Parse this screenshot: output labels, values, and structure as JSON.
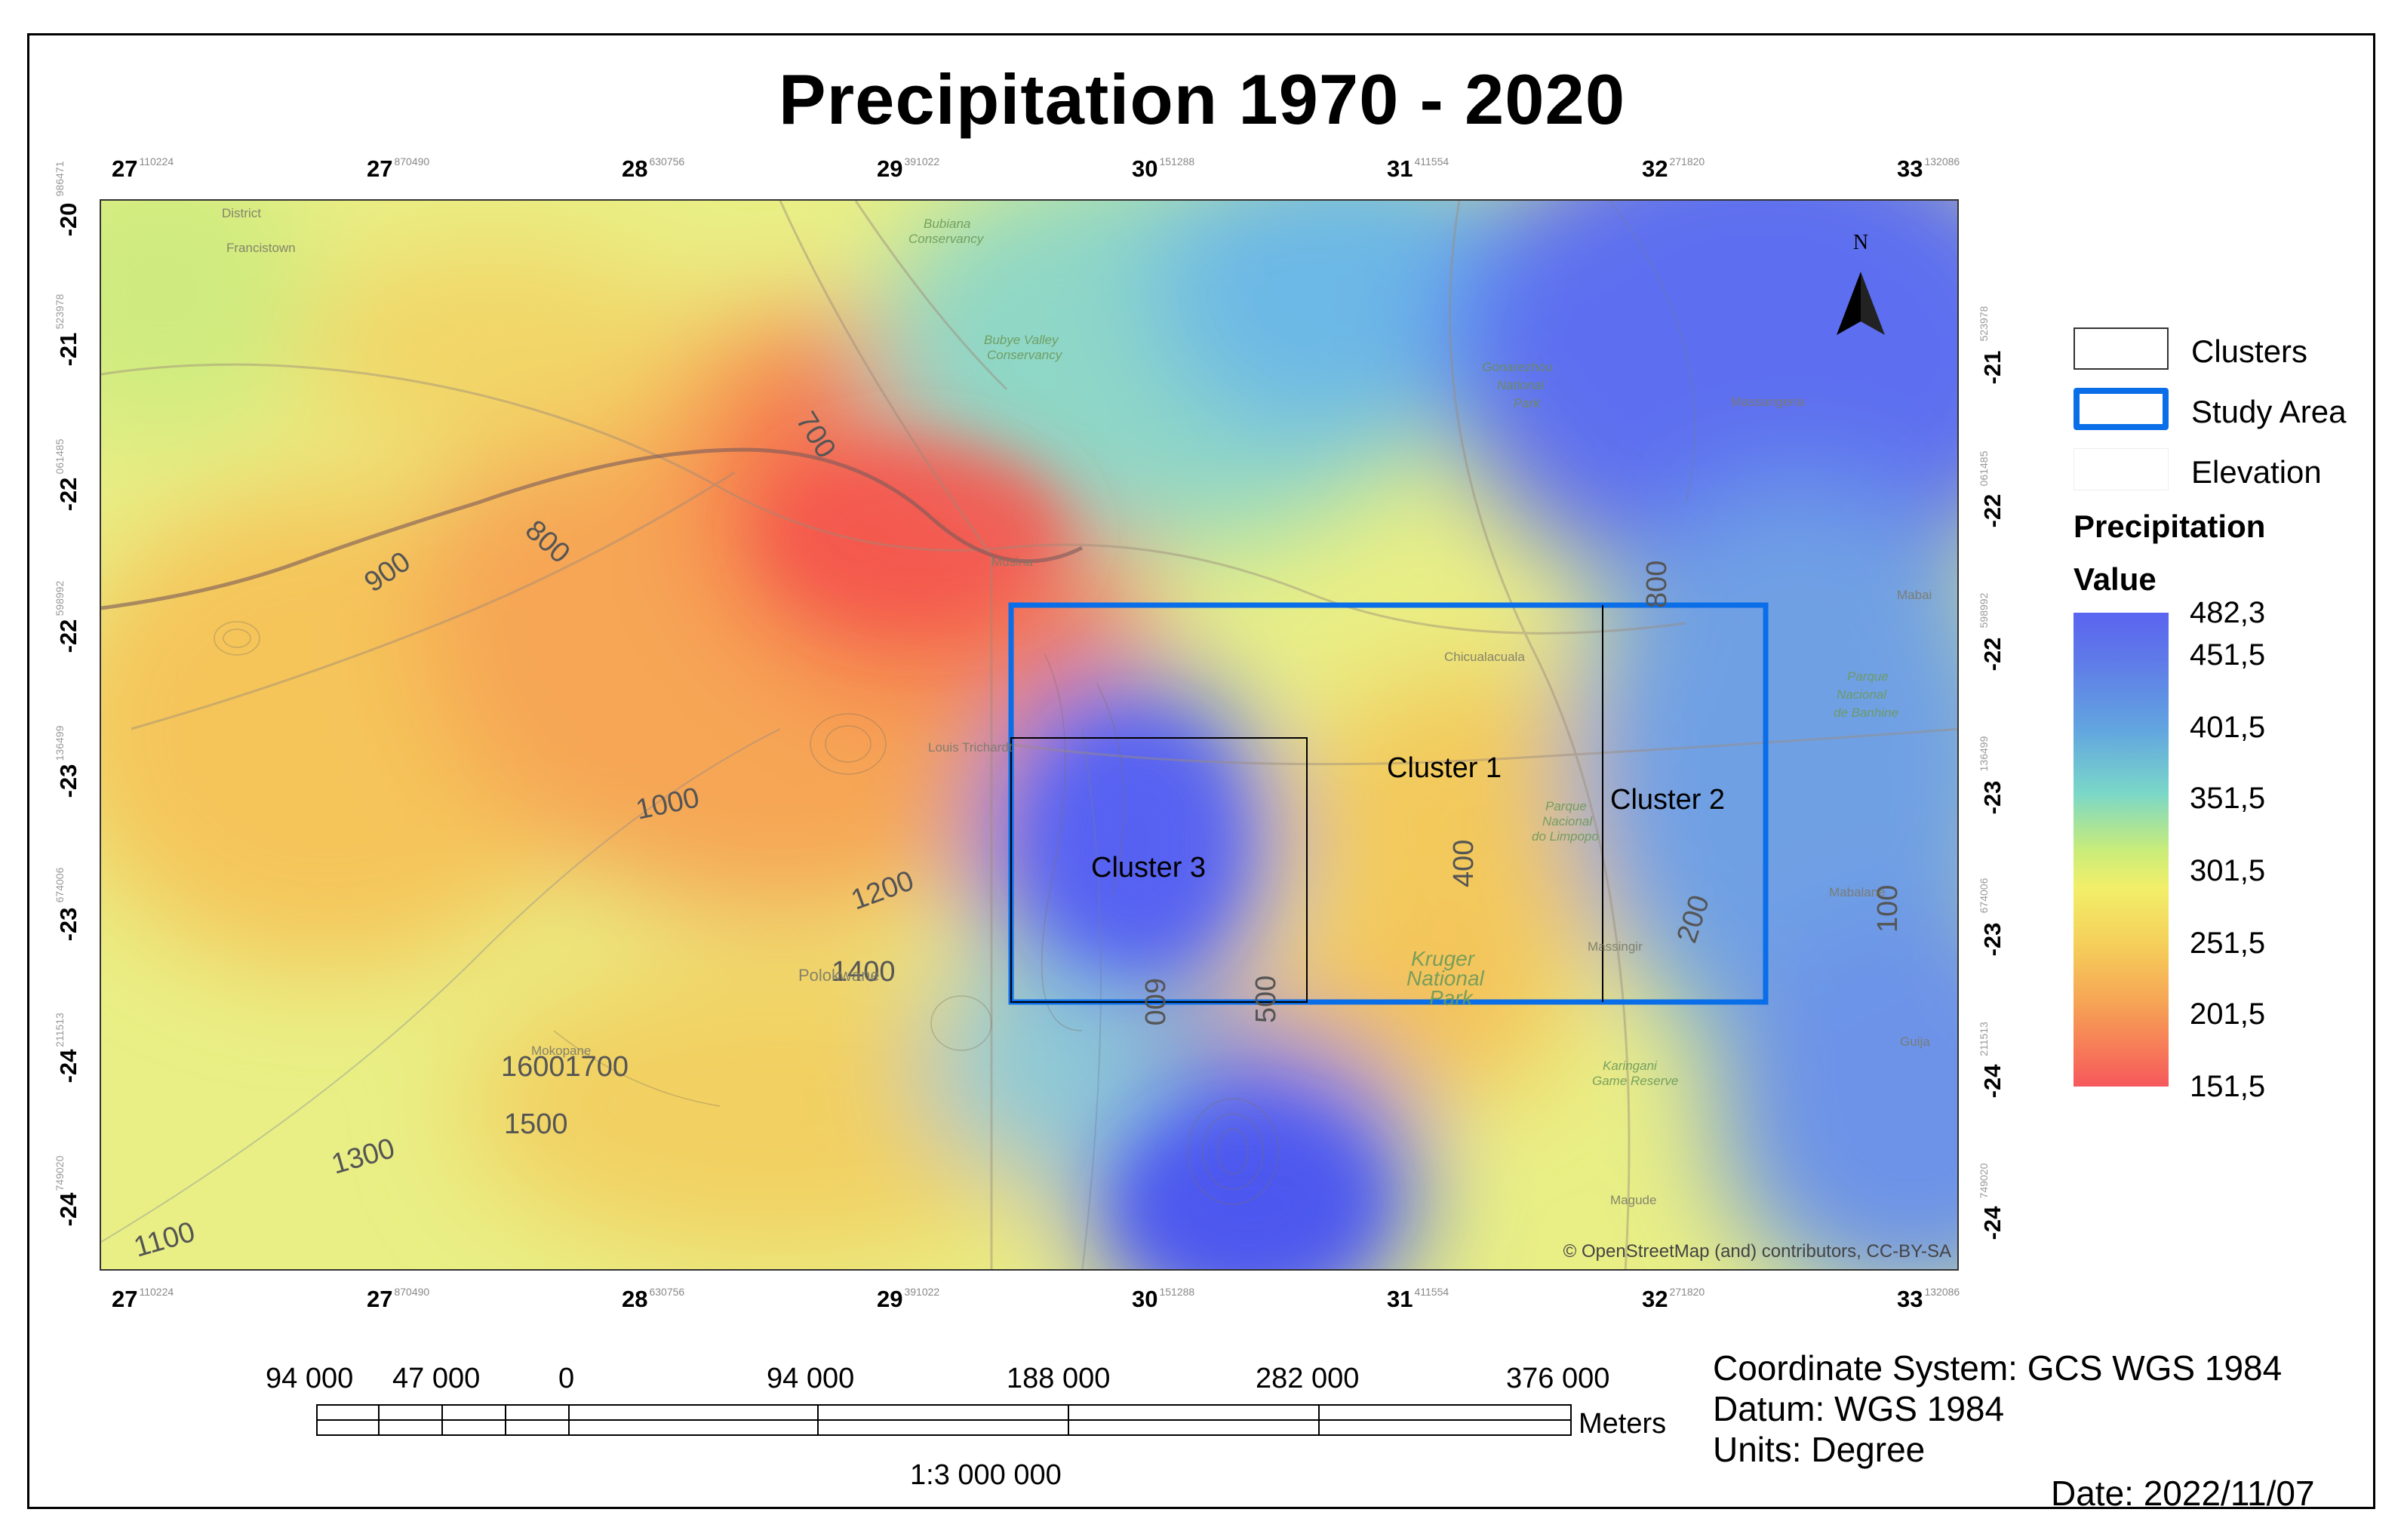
{
  "title": "Precipitation 1970 - 2020",
  "top_ticks": [
    {
      "deg": "27",
      "sub": "110224"
    },
    {
      "deg": "27",
      "sub": "870490"
    },
    {
      "deg": "28",
      "sub": "630756"
    },
    {
      "deg": "29",
      "sub": "391022"
    },
    {
      "deg": "30",
      "sub": "151288"
    },
    {
      "deg": "31",
      "sub": "411554"
    },
    {
      "deg": "32",
      "sub": "271820"
    },
    {
      "deg": "33",
      "sub": "132086"
    }
  ],
  "bottom_ticks": [
    {
      "deg": "27",
      "sub": "110224"
    },
    {
      "deg": "27",
      "sub": "870490"
    },
    {
      "deg": "28",
      "sub": "630756"
    },
    {
      "deg": "29",
      "sub": "391022"
    },
    {
      "deg": "30",
      "sub": "151288"
    },
    {
      "deg": "31",
      "sub": "411554"
    },
    {
      "deg": "32",
      "sub": "271820"
    },
    {
      "deg": "33",
      "sub": "132086"
    }
  ],
  "left_ticks": [
    {
      "deg": "-20",
      "sub": "986471"
    },
    {
      "deg": "-21",
      "sub": "523978"
    },
    {
      "deg": "-22",
      "sub": "061485"
    },
    {
      "deg": "-22",
      "sub": "598992"
    },
    {
      "deg": "-23",
      "sub": "136499"
    },
    {
      "deg": "-23",
      "sub": "674006"
    },
    {
      "deg": "-24",
      "sub": "211513"
    },
    {
      "deg": "-24",
      "sub": "749020"
    }
  ],
  "right_ticks": [
    {
      "deg": "-21",
      "sub": "523978"
    },
    {
      "deg": "-22",
      "sub": "061485"
    },
    {
      "deg": "-22",
      "sub": "598992"
    },
    {
      "deg": "-23",
      "sub": "136499"
    },
    {
      "deg": "-23",
      "sub": "674006"
    },
    {
      "deg": "-24",
      "sub": "211513"
    },
    {
      "deg": "-24",
      "sub": "749020"
    }
  ],
  "map": {
    "north_label": "N",
    "attribution": "© OpenStreetMap (and) contributors, CC-BY-SA",
    "clusters": {
      "cluster1": "Cluster 1",
      "cluster2": "Cluster 2",
      "cluster3": "Cluster 3"
    },
    "contour_labels": [
      {
        "id": "c700",
        "text": "700"
      },
      {
        "id": "c800a",
        "text": "800"
      },
      {
        "id": "c900",
        "text": "900"
      },
      {
        "id": "c800b",
        "text": "800"
      },
      {
        "id": "c1000",
        "text": "1000"
      },
      {
        "id": "c1200",
        "text": "1200"
      },
      {
        "id": "c1400",
        "text": "1400"
      },
      {
        "id": "c16001700",
        "text": "16001700"
      },
      {
        "id": "c1500",
        "text": "1500"
      },
      {
        "id": "c1300",
        "text": "1300"
      },
      {
        "id": "c1100",
        "text": "1100"
      },
      {
        "id": "c400",
        "text": "400"
      },
      {
        "id": "c200",
        "text": "200"
      },
      {
        "id": "c100",
        "text": "100"
      },
      {
        "id": "c600",
        "text": "600"
      },
      {
        "id": "c500",
        "text": "500"
      }
    ],
    "place_names": [
      {
        "id": "district",
        "text": "District"
      },
      {
        "id": "francistown",
        "text": "Francistown"
      },
      {
        "id": "bubiana",
        "text": "Bubiana"
      },
      {
        "id": "bubiana2",
        "text": "Conservancy"
      },
      {
        "id": "bubye",
        "text": "Bubye Valley"
      },
      {
        "id": "bubye2",
        "text": "Conservancy"
      },
      {
        "id": "gonarezhou",
        "text": "Gonarezhou"
      },
      {
        "id": "gonarezhou2",
        "text": "National"
      },
      {
        "id": "gonarezhou3",
        "text": "Park"
      },
      {
        "id": "massangena",
        "text": "Massangena"
      },
      {
        "id": "musina",
        "text": "Musina"
      },
      {
        "id": "chicualacuala",
        "text": "Chicualacuala"
      },
      {
        "id": "louis",
        "text": "Louis Trichardt"
      },
      {
        "id": "parque1",
        "text": "Parque"
      },
      {
        "id": "parque2",
        "text": "Nacional"
      },
      {
        "id": "parque3",
        "text": "do Limpopo"
      },
      {
        "id": "banhine1",
        "text": "Parque"
      },
      {
        "id": "banhine2",
        "text": "Nacional"
      },
      {
        "id": "banhine3",
        "text": "de Banhine"
      },
      {
        "id": "mabalane",
        "text": "Mabalane"
      },
      {
        "id": "massingir",
        "text": "Massingir"
      },
      {
        "id": "kruger1",
        "text": "Kruger"
      },
      {
        "id": "kruger2",
        "text": "National"
      },
      {
        "id": "kruger3",
        "text": "Park"
      },
      {
        "id": "polokwane",
        "text": "Polokwane"
      },
      {
        "id": "mokopane",
        "text": "Mokopane"
      },
      {
        "id": "karingani",
        "text": "Karingani"
      },
      {
        "id": "karingani2",
        "text": "Game Reserve"
      },
      {
        "id": "guija",
        "text": "Guija"
      },
      {
        "id": "magude",
        "text": "Magude"
      },
      {
        "id": "mabai",
        "text": "Mabai"
      }
    ]
  },
  "legend": {
    "clusters": "Clusters",
    "study_area": "Study Area",
    "elevation": "Elevation",
    "heading1": "Precipitation",
    "heading2": "Value",
    "ramp_labels": [
      "482,3",
      "451,5",
      "401,5",
      "351,5",
      "301,5",
      "251,5",
      "201,5",
      "151,5"
    ],
    "colors": {
      "high": "#5a64f0",
      "mid": "#f2ef6a",
      "low": "#f6585c",
      "study_area": "#0a6ee8"
    }
  },
  "scalebar": {
    "labels": [
      "94 000",
      "47 000",
      "0",
      "94 000",
      "188 000",
      "282 000",
      "376 000"
    ],
    "unit": "Meters",
    "ratio": "1:3 000 000"
  },
  "info": {
    "coordinate_system": "Coordinate System: GCS WGS 1984",
    "datum": "Datum: WGS 1984",
    "units": "Units: Degree",
    "date": "Date: 2022/11/07"
  }
}
